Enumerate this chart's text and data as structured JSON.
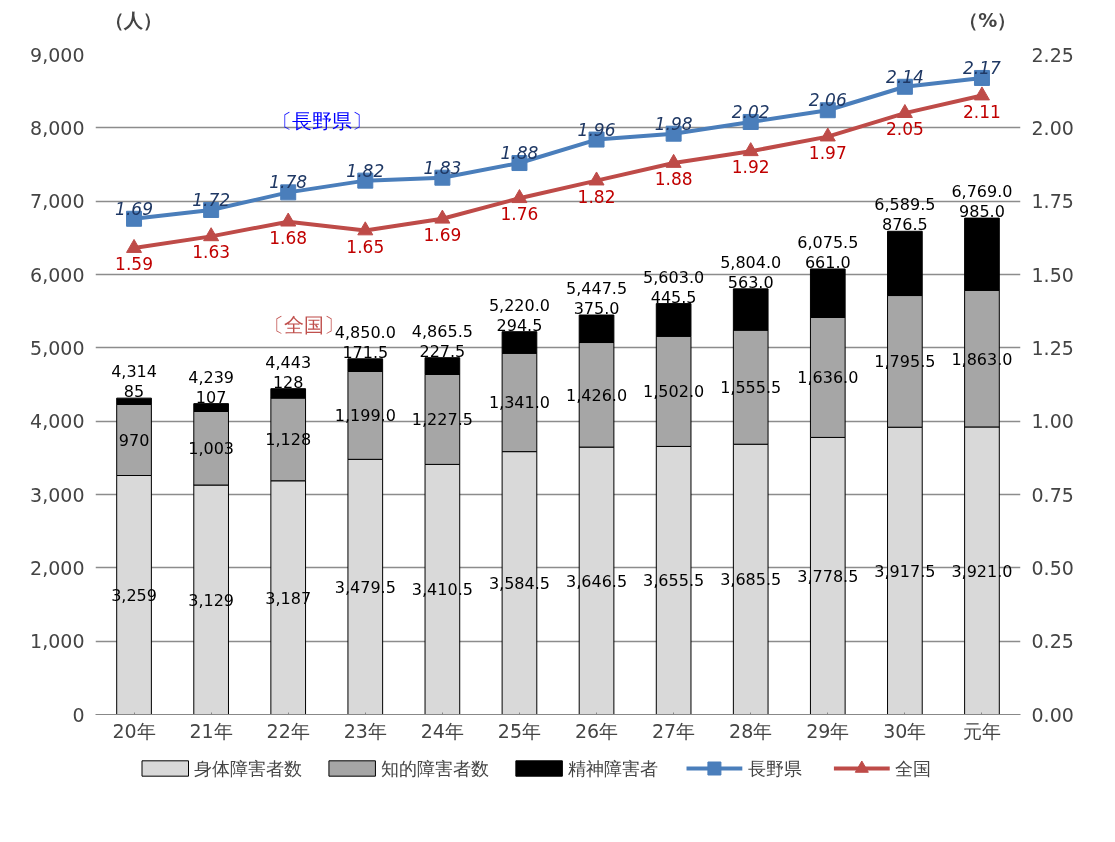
{
  "chart_data": {
    "type": "bar",
    "stacked": true,
    "ylabel": "（人）",
    "y2label": "（%）",
    "categories": [
      "20年",
      "21年",
      "22年",
      "23年",
      "24年",
      "25年",
      "26年",
      "27年",
      "28年",
      "29年",
      "30年",
      "元年"
    ],
    "series": [
      {
        "name": "身体障害者数",
        "color": "#d9d9d9",
        "values": [
          3259,
          3129,
          3187,
          3479.5,
          3410.5,
          3584.5,
          3646.5,
          3655.5,
          3685.5,
          3778.5,
          3917.5,
          3921.0
        ],
        "value_labels": [
          "3,259",
          "3,129",
          "3,187",
          "3,479.5",
          "3,410.5",
          "3,584.5",
          "3,646.5",
          "3,655.5",
          "3,685.5",
          "3,778.5",
          "3,917.5",
          "3,921.0"
        ]
      },
      {
        "name": "知的障害者数",
        "color": "#a6a6a6",
        "values": [
          970,
          1003,
          1128,
          1199.0,
          1227.5,
          1341.0,
          1426.0,
          1502.0,
          1555.5,
          1636.0,
          1795.5,
          1863.0
        ],
        "value_labels": [
          "970",
          "1,003",
          "1,128",
          "1,199.0",
          "1,227.5",
          "1,341.0",
          "1,426.0",
          "1,502.0",
          "1,555.5",
          "1,636.0",
          "1,795.5",
          "1,863.0"
        ]
      },
      {
        "name": "精神障害者",
        "color": "#000000",
        "values": [
          85,
          107,
          128,
          171.5,
          227.5,
          294.5,
          375.0,
          445.5,
          563.0,
          661.0,
          876.5,
          985.0
        ],
        "value_labels": [
          "85",
          "107",
          "128",
          "171.5",
          "227.5",
          "294.5",
          "375.0",
          "445.5",
          "563.0",
          "661.0",
          "876.5",
          "985.0"
        ]
      },
      {
        "name": "長野県",
        "type": "line",
        "axis": "y2",
        "marker": "square",
        "color": "#4a7ebb",
        "values": [
          1.69,
          1.72,
          1.78,
          1.82,
          1.83,
          1.88,
          1.96,
          1.98,
          2.02,
          2.06,
          2.14,
          2.17
        ],
        "value_labels": [
          "1.69",
          "1.72",
          "1.78",
          "1.82",
          "1.83",
          "1.88",
          "1.96",
          "1.98",
          "2.02",
          "2.06",
          "2.14",
          "2.17"
        ]
      },
      {
        "name": "全国",
        "type": "line",
        "axis": "y2",
        "marker": "triangle",
        "color": "#be4b48",
        "values": [
          1.59,
          1.63,
          1.68,
          1.65,
          1.69,
          1.76,
          1.82,
          1.88,
          1.92,
          1.97,
          2.05,
          2.11
        ],
        "value_labels": [
          "1.59",
          "1.63",
          "1.68",
          "1.65",
          "1.69",
          "1.76",
          "1.82",
          "1.88",
          "1.92",
          "1.97",
          "2.05",
          "2.11"
        ]
      }
    ],
    "totals": [
      "4,314",
      "4,239",
      "4,443",
      "4,850.0",
      "4,865.5",
      "5,220.0",
      "5,447.5",
      "5,603.0",
      "5,804.0",
      "6,075.5",
      "6,589.5",
      "6,769.0"
    ],
    "annotations": [
      "〔長野県〕",
      "〔全国〕"
    ],
    "ylim": [
      0,
      9000
    ],
    "yticks": [
      {
        "value": 0,
        "label": "0"
      },
      {
        "value": 1000,
        "label": "1,000"
      },
      {
        "value": 2000,
        "label": "2,000"
      },
      {
        "value": 3000,
        "label": "3,000"
      },
      {
        "value": 4000,
        "label": "4,000"
      },
      {
        "value": 5000,
        "label": "5,000"
      },
      {
        "value": 6000,
        "label": "6,000"
      },
      {
        "value": 7000,
        "label": "7,000"
      },
      {
        "value": 8000,
        "label": "8,000"
      },
      {
        "value": 9000,
        "label": "9,000"
      }
    ],
    "y2lim": [
      0,
      2.25
    ],
    "y2ticks": [
      {
        "value": 0,
        "label": "0.00"
      },
      {
        "value": 0.25,
        "label": "0.25"
      },
      {
        "value": 0.5,
        "label": "0.50"
      },
      {
        "value": 0.75,
        "label": "0.75"
      },
      {
        "value": 1,
        "label": "1.00"
      },
      {
        "value": 1.25,
        "label": "1.25"
      },
      {
        "value": 1.5,
        "label": "1.50"
      },
      {
        "value": 1.75,
        "label": "1.75"
      },
      {
        "value": 2,
        "label": "2.00"
      },
      {
        "value": 2.25,
        "label": "2.25"
      }
    ],
    "grid": "y",
    "legend": "bottom"
  }
}
